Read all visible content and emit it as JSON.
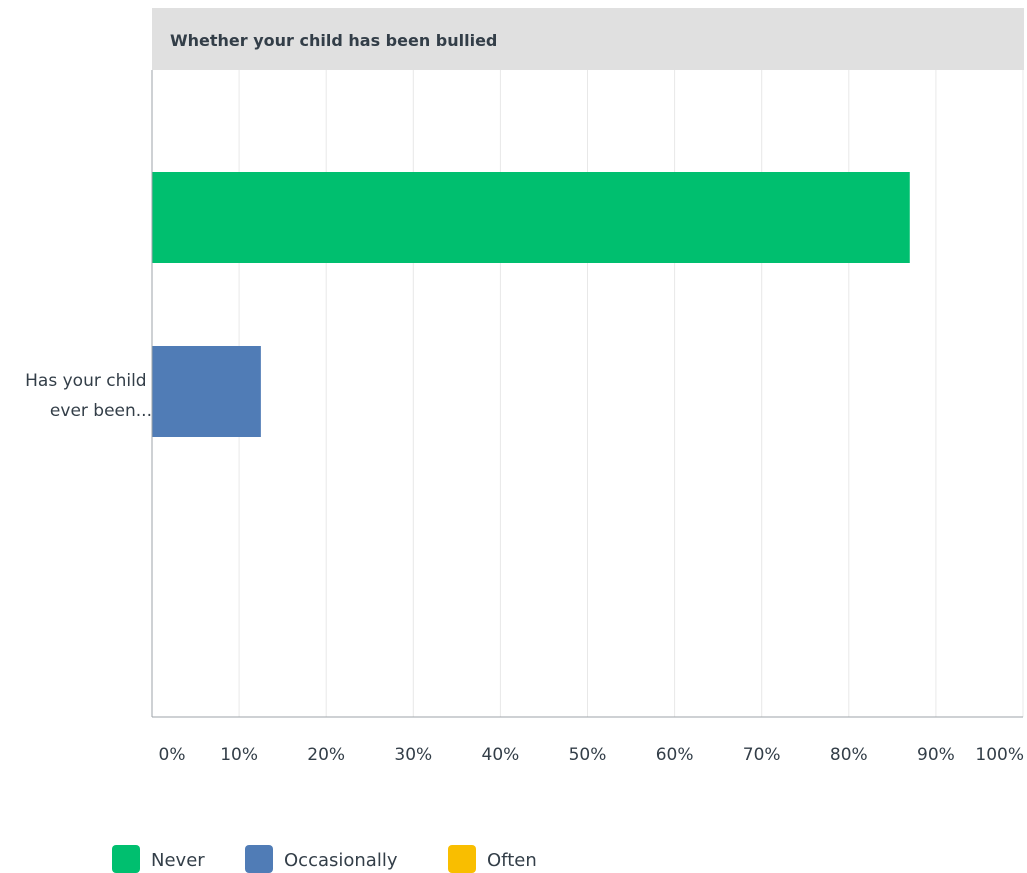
{
  "chart_data": {
    "type": "bar",
    "orientation": "horizontal",
    "title": "Whether your child has been bullied",
    "categories": [
      "Has your child ever been..."
    ],
    "category_label_lines": [
      "Has your child",
      "ever been..."
    ],
    "series": [
      {
        "name": "Never",
        "color": "#00bf6f",
        "values": [
          87
        ]
      },
      {
        "name": "Occasionally",
        "color": "#507cb6",
        "values": [
          12.5
        ]
      },
      {
        "name": "Often",
        "color": "#f9be00",
        "values": [
          0
        ]
      }
    ],
    "xlim": [
      0,
      100
    ],
    "xticks": [
      "0%",
      "10%",
      "20%",
      "30%",
      "40%",
      "50%",
      "60%",
      "70%",
      "80%",
      "90%",
      "100%"
    ],
    "grid": true,
    "legend_position": "bottom-left",
    "xlabel": "",
    "ylabel": ""
  }
}
